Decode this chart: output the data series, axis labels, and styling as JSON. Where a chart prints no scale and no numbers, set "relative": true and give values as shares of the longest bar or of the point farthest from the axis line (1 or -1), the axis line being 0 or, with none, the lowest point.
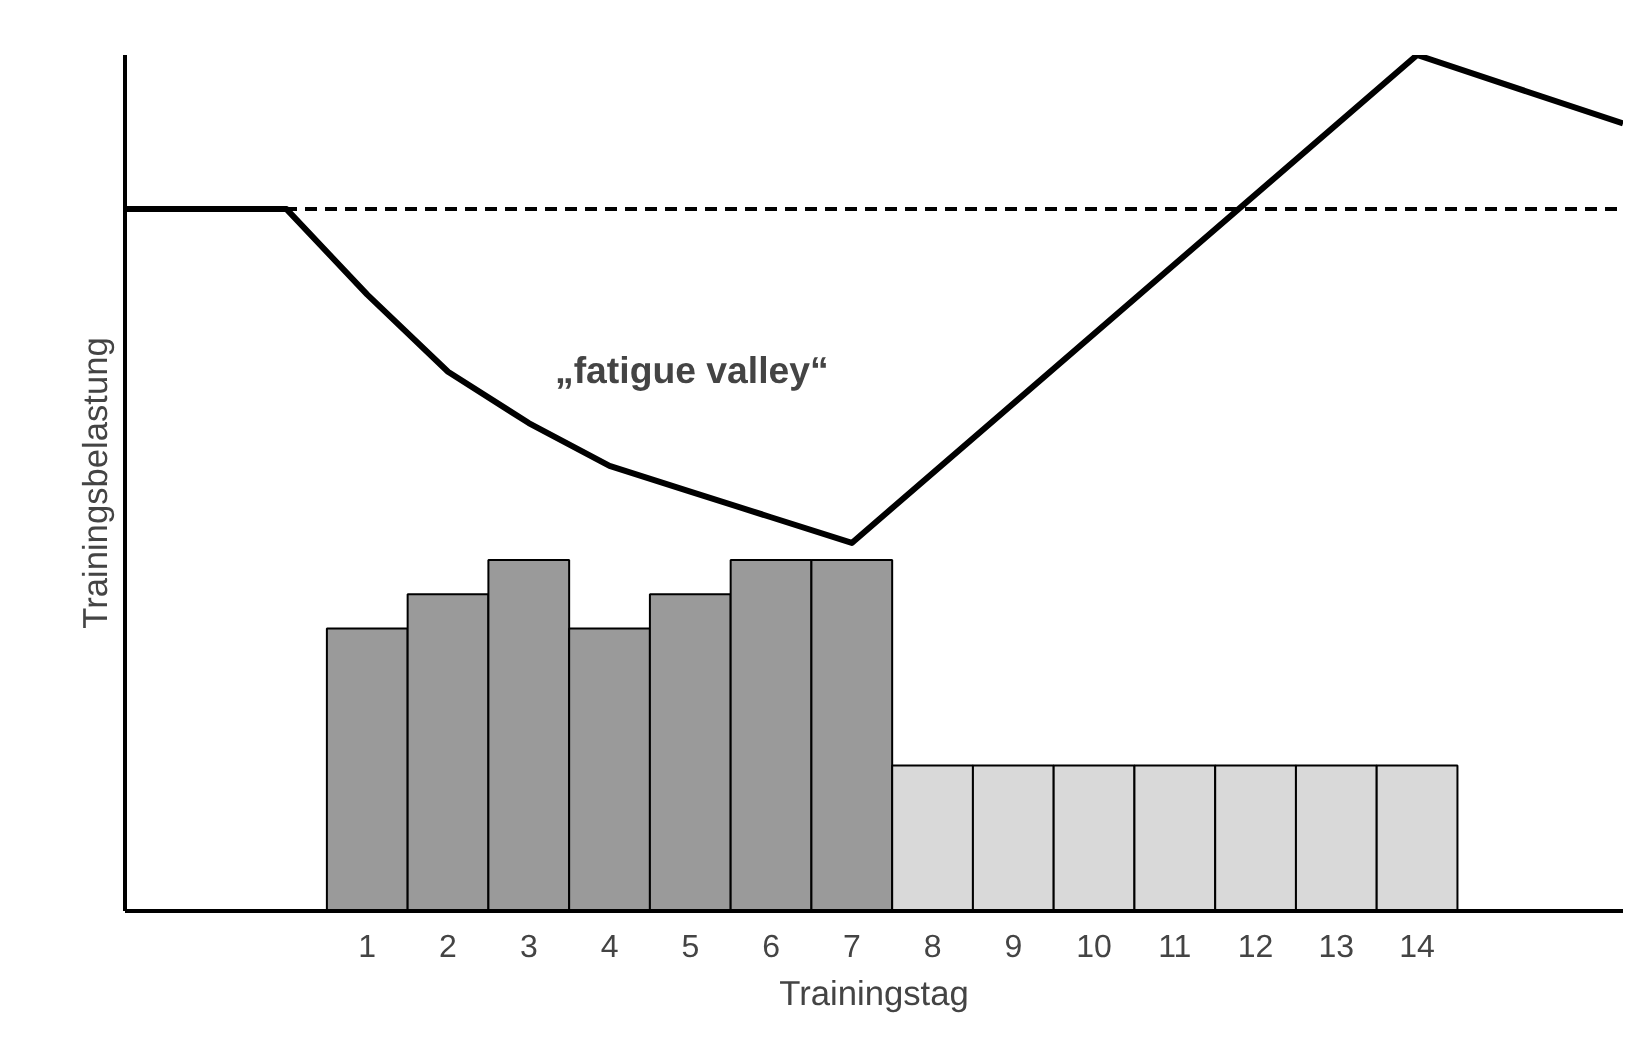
{
  "chart_data": {
    "type": "bar",
    "relative": true,
    "xlabel": "Trainingstag",
    "ylabel": "Trainingsbelastung",
    "xlim": [
      -2,
      16.55
    ],
    "xticks": [
      1,
      2,
      3,
      4,
      5,
      6,
      7,
      8,
      9,
      10,
      11,
      12,
      13,
      14
    ],
    "grid": false,
    "annotations": [
      "„fatigue valley“"
    ],
    "ref_lines": [
      {
        "axis": "y",
        "value": 0.82,
        "line_style": "dashed",
        "color": "#000000"
      }
    ],
    "series": [
      {
        "x": [
          1,
          2,
          3,
          4,
          5,
          6,
          7,
          8,
          9,
          10,
          11,
          12,
          13,
          14
        ],
        "values": [
          0.33,
          0.37,
          0.41,
          0.33,
          0.37,
          0.41,
          0.41,
          0.17,
          0.17,
          0.17,
          0.17,
          0.17,
          0.17,
          0.17
        ],
        "colors": [
          "#9a9a9a",
          "#9a9a9a",
          "#9a9a9a",
          "#9a9a9a",
          "#9a9a9a",
          "#9a9a9a",
          "#9a9a9a",
          "#d9d9d9",
          "#d9d9d9",
          "#d9d9d9",
          "#d9d9d9",
          "#d9d9d9",
          "#d9d9d9",
          "#d9d9d9"
        ]
      },
      {
        "type": "line",
        "color": "#000000",
        "line_style": "solid",
        "x": [
          -2,
          0,
          1,
          2,
          3,
          4,
          5,
          6,
          7,
          14,
          16.55
        ],
        "values": [
          0.82,
          0.82,
          0.72,
          0.63,
          0.57,
          0.52,
          0.49,
          0.46,
          0.43,
          1.0,
          0.92
        ]
      }
    ]
  }
}
